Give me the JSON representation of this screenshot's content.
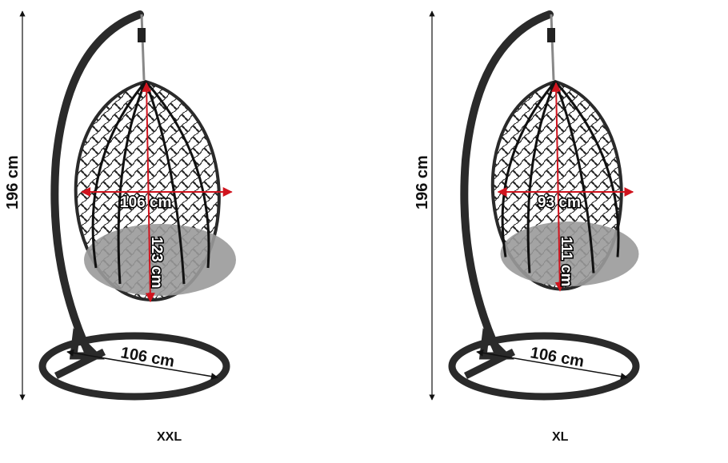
{
  "colors": {
    "frame": "#2a2a2a",
    "cushion": "#9a9a9a",
    "measure": "#d0141e",
    "text": "#111111"
  },
  "variants": [
    {
      "size_label": "XXL",
      "total_height": "196 cm",
      "egg_width": "106 cm",
      "egg_height": "123 cm",
      "base_diameter": "106 cm"
    },
    {
      "size_label": "XL",
      "total_height": "196 cm",
      "egg_width": "93 cm",
      "egg_height": "111 cm",
      "base_diameter": "106 cm"
    }
  ]
}
